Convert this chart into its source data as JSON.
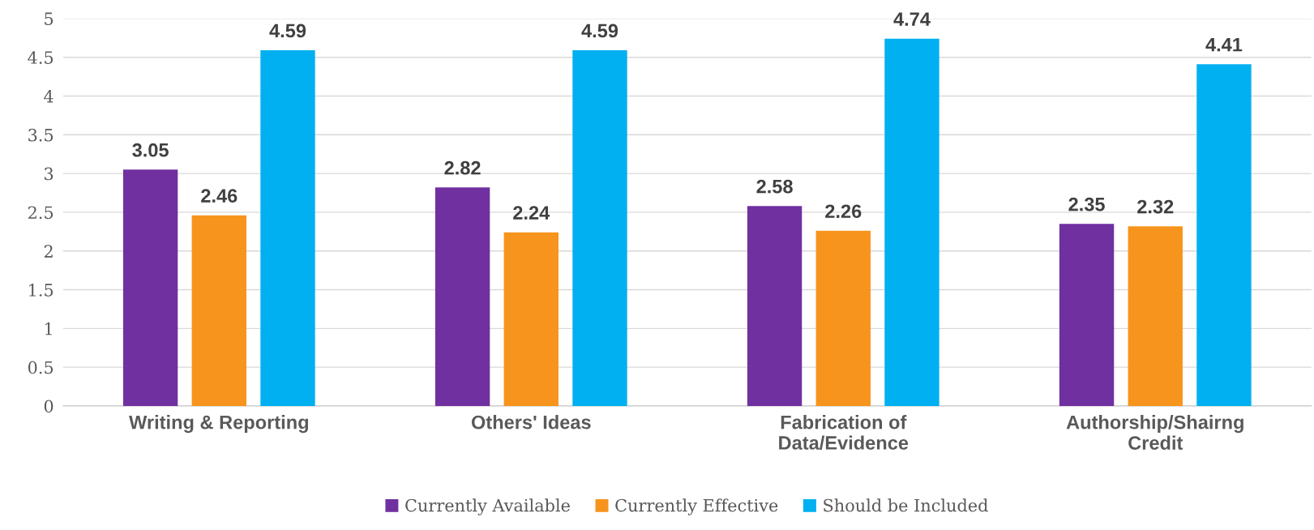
{
  "chart_data": {
    "type": "bar",
    "categories": [
      "Writing & Reporting",
      "Others' Ideas",
      "Fabrication of\nData/Evidence",
      "Authorship/Shairng\nCredit"
    ],
    "series": [
      {
        "name": "Currently Available",
        "color": "#7030a0",
        "values": [
          3.05,
          2.82,
          2.58,
          2.35
        ]
      },
      {
        "name": "Currently Effective",
        "color": "#f7941d",
        "values": [
          2.46,
          2.24,
          2.26,
          2.32
        ]
      },
      {
        "name": "Should be Included",
        "color": "#00b0f0",
        "values": [
          4.59,
          4.59,
          4.74,
          4.41
        ]
      }
    ],
    "ylim": [
      0,
      5
    ],
    "yticks": [
      0,
      0.5,
      1,
      1.5,
      2,
      2.5,
      3,
      3.5,
      4,
      4.5,
      5
    ],
    "grid": "y",
    "legend": "bottom",
    "data_labels": true
  }
}
